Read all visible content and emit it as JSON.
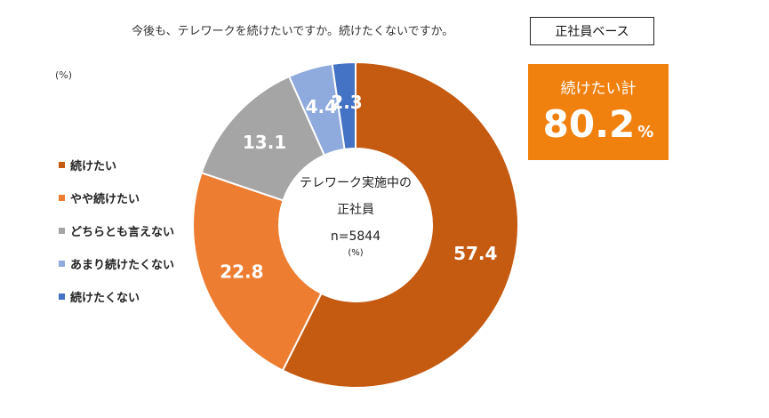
{
  "header": {
    "question": "今後も、テレワークを続けたいですか。続けたくないですか。",
    "base_label": "正社員ベース"
  },
  "summary": {
    "label": "続けたい計",
    "value": "80.2",
    "unit": "%"
  },
  "unit_label": "(%)",
  "center": {
    "line1": "テレワーク実施中の",
    "line2": "正社員",
    "line3": "n=5844",
    "line4": "(%)"
  },
  "legend": [
    {
      "label": "続けたい",
      "color": "#c55a11"
    },
    {
      "label": "やや続けたい",
      "color": "#ed7d31"
    },
    {
      "label": "どちらとも言えない",
      "color": "#a5a5a5"
    },
    {
      "label": "あまり続けたくない",
      "color": "#8faadc"
    },
    {
      "label": "続けたくない",
      "color": "#4472c4"
    }
  ],
  "chart_data": {
    "type": "pie",
    "variant": "donut",
    "series": [
      {
        "name": "続けたい",
        "value": 57.4,
        "label": "57.4",
        "color": "#c55a11"
      },
      {
        "name": "やや続けたい",
        "value": 22.8,
        "label": "22.8",
        "color": "#ed7d31"
      },
      {
        "name": "どちらとも言えない",
        "value": 13.1,
        "label": "13.1",
        "color": "#a5a5a5"
      },
      {
        "name": "あまり続けたくない",
        "value": 4.4,
        "label": "4.4",
        "color": "#8faadc"
      },
      {
        "name": "続けたくない",
        "value": 2.3,
        "label": "2.3",
        "color": "#4472c4"
      }
    ],
    "start": "12 o'clock",
    "direction": "clockwise",
    "legend_position": "left"
  }
}
